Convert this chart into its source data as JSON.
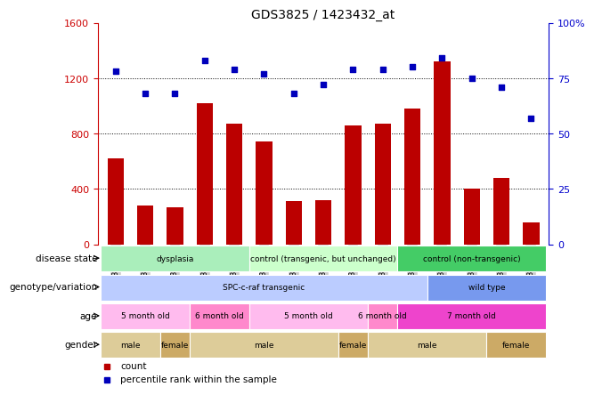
{
  "title": "GDS3825 / 1423432_at",
  "samples": [
    "GSM351067",
    "GSM351068",
    "GSM351066",
    "GSM351065",
    "GSM351069",
    "GSM351072",
    "GSM351094",
    "GSM351071",
    "GSM351064",
    "GSM351070",
    "GSM351095",
    "GSM351144",
    "GSM351146",
    "GSM351145",
    "GSM351147"
  ],
  "counts": [
    620,
    280,
    270,
    1020,
    870,
    740,
    310,
    320,
    860,
    870,
    980,
    1320,
    400,
    480,
    160
  ],
  "percentiles": [
    78,
    68,
    68,
    83,
    79,
    77,
    68,
    72,
    79,
    79,
    80,
    84,
    75,
    71,
    57
  ],
  "ylim_left": [
    0,
    1600
  ],
  "ylim_right": [
    0,
    100
  ],
  "yticks_left": [
    0,
    400,
    800,
    1200,
    1600
  ],
  "ytick_labels_left": [
    "0",
    "400",
    "800",
    "1200",
    "1600"
  ],
  "yticks_right": [
    0,
    25,
    50,
    75,
    100
  ],
  "ytick_labels_right": [
    "0",
    "25",
    "50",
    "75",
    "100%"
  ],
  "bar_color": "#bb0000",
  "dot_color": "#0000bb",
  "grid_lines": [
    400,
    800,
    1200
  ],
  "annotations": [
    {
      "label": "disease state",
      "groups": [
        {
          "text": "dysplasia",
          "start": 0,
          "end": 4,
          "color": "#aaeebb"
        },
        {
          "text": "control (transgenic, but unchanged)",
          "start": 5,
          "end": 9,
          "color": "#ccffcc"
        },
        {
          "text": "control (non-transgenic)",
          "start": 10,
          "end": 14,
          "color": "#44cc66"
        }
      ]
    },
    {
      "label": "genotype/variation",
      "groups": [
        {
          "text": "SPC-c-raf transgenic",
          "start": 0,
          "end": 10,
          "color": "#bbccff"
        },
        {
          "text": "wild type",
          "start": 11,
          "end": 14,
          "color": "#7799ee"
        }
      ]
    },
    {
      "label": "age",
      "groups": [
        {
          "text": "5 month old",
          "start": 0,
          "end": 2,
          "color": "#ffbbee"
        },
        {
          "text": "6 month old",
          "start": 3,
          "end": 4,
          "color": "#ff88cc"
        },
        {
          "text": "5 month old",
          "start": 5,
          "end": 8,
          "color": "#ffbbee"
        },
        {
          "text": "6 month old",
          "start": 9,
          "end": 9,
          "color": "#ff88cc"
        },
        {
          "text": "7 month old",
          "start": 10,
          "end": 14,
          "color": "#ee44cc"
        }
      ]
    },
    {
      "label": "gender",
      "groups": [
        {
          "text": "male",
          "start": 0,
          "end": 1,
          "color": "#ddcc99"
        },
        {
          "text": "female",
          "start": 2,
          "end": 2,
          "color": "#ccaa66"
        },
        {
          "text": "male",
          "start": 3,
          "end": 7,
          "color": "#ddcc99"
        },
        {
          "text": "female",
          "start": 8,
          "end": 8,
          "color": "#ccaa66"
        },
        {
          "text": "male",
          "start": 9,
          "end": 12,
          "color": "#ddcc99"
        },
        {
          "text": "female",
          "start": 13,
          "end": 14,
          "color": "#ccaa66"
        }
      ]
    }
  ],
  "legend_items": [
    {
      "label": "count",
      "color": "#bb0000",
      "marker": "s"
    },
    {
      "label": "percentile rank within the sample",
      "color": "#0000bb",
      "marker": "s"
    }
  ],
  "background_color": "#ffffff",
  "tick_bg_color": "#cccccc"
}
